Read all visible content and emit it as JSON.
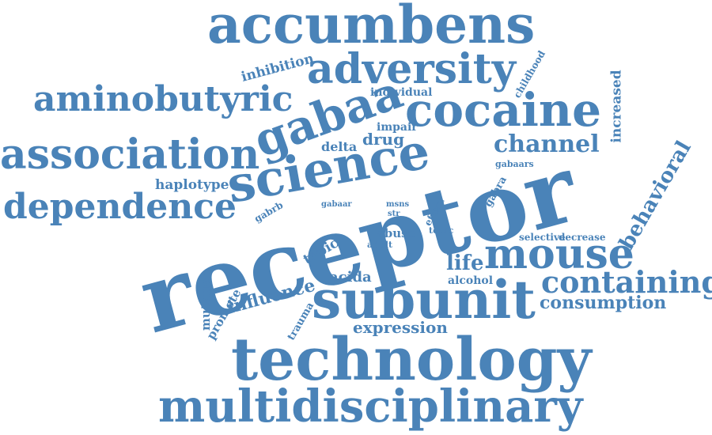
{
  "theme": {
    "word_color": "#4a83b8",
    "background": "#ffffff"
  },
  "words": {
    "accumbens": "accumbens",
    "adversity": "adversity",
    "aminobutyric": "aminobutyric",
    "gabaa": "gabaa",
    "cocaine": "cocaine",
    "association": "association",
    "science": "science",
    "channel": "channel",
    "dependence": "dependence",
    "receptor": "receptor",
    "mouse": "mouse",
    "containing": "containing",
    "behavioral": "behavioral",
    "subunit": "subunit",
    "consumption": "consumption",
    "technology": "technology",
    "multidisciplinary": "multidisciplinary",
    "inhibition": "inhibition",
    "childhood": "childhood",
    "individual": "individual",
    "increased": "increased",
    "impair": "impair",
    "drug": "drug",
    "delta": "delta",
    "haplotype": "haplotype",
    "gabra": "gabra",
    "gabaars": "gabaars",
    "gabrb": "gabrb",
    "gabaar": "gabaar",
    "msns": "msns",
    "str": "str",
    "effect": "effect",
    "tonic": "tonic",
    "abuse": "abuse",
    "adult": "adult",
    "topic": "topic",
    "selective": "selective",
    "decrease": "decrease",
    "life": "life",
    "acida": "acida",
    "alcohol": "alcohol",
    "influence": "influence",
    "mutation": "mutation",
    "promote": "promote",
    "trauma": "trauma",
    "expression": "expression"
  }
}
